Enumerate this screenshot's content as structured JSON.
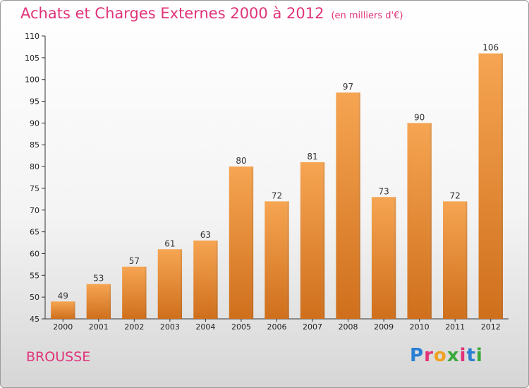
{
  "header": {
    "title": "Achats et Charges Externes 2000 à 2012",
    "unit": "(en milliers d'€)"
  },
  "footer": {
    "commune": "BROUSSE",
    "logo": {
      "letters": [
        "P",
        "r",
        "o",
        "x",
        "i",
        "t",
        "i"
      ],
      "colors": [
        "#2a7fd4",
        "#e0337a",
        "#f0a020",
        "#3aa83a",
        "#e0337a",
        "#2a7fd4",
        "#3aa83a"
      ]
    }
  },
  "chart_data": {
    "type": "bar",
    "title": "Achats et Charges Externes 2000 à 2012",
    "subtitle": "(en milliers d'€)",
    "categories": [
      "2000",
      "2001",
      "2002",
      "2003",
      "2004",
      "2005",
      "2006",
      "2007",
      "2008",
      "2009",
      "2010",
      "2011",
      "2012"
    ],
    "values": [
      49,
      53,
      57,
      61,
      63,
      80,
      72,
      81,
      97,
      73,
      90,
      72,
      106
    ],
    "ylim": [
      45,
      110
    ],
    "yticks": [
      45,
      50,
      55,
      60,
      65,
      70,
      75,
      80,
      85,
      90,
      95,
      100,
      105,
      110
    ],
    "grid": false,
    "bar_color": "#f0a050"
  }
}
